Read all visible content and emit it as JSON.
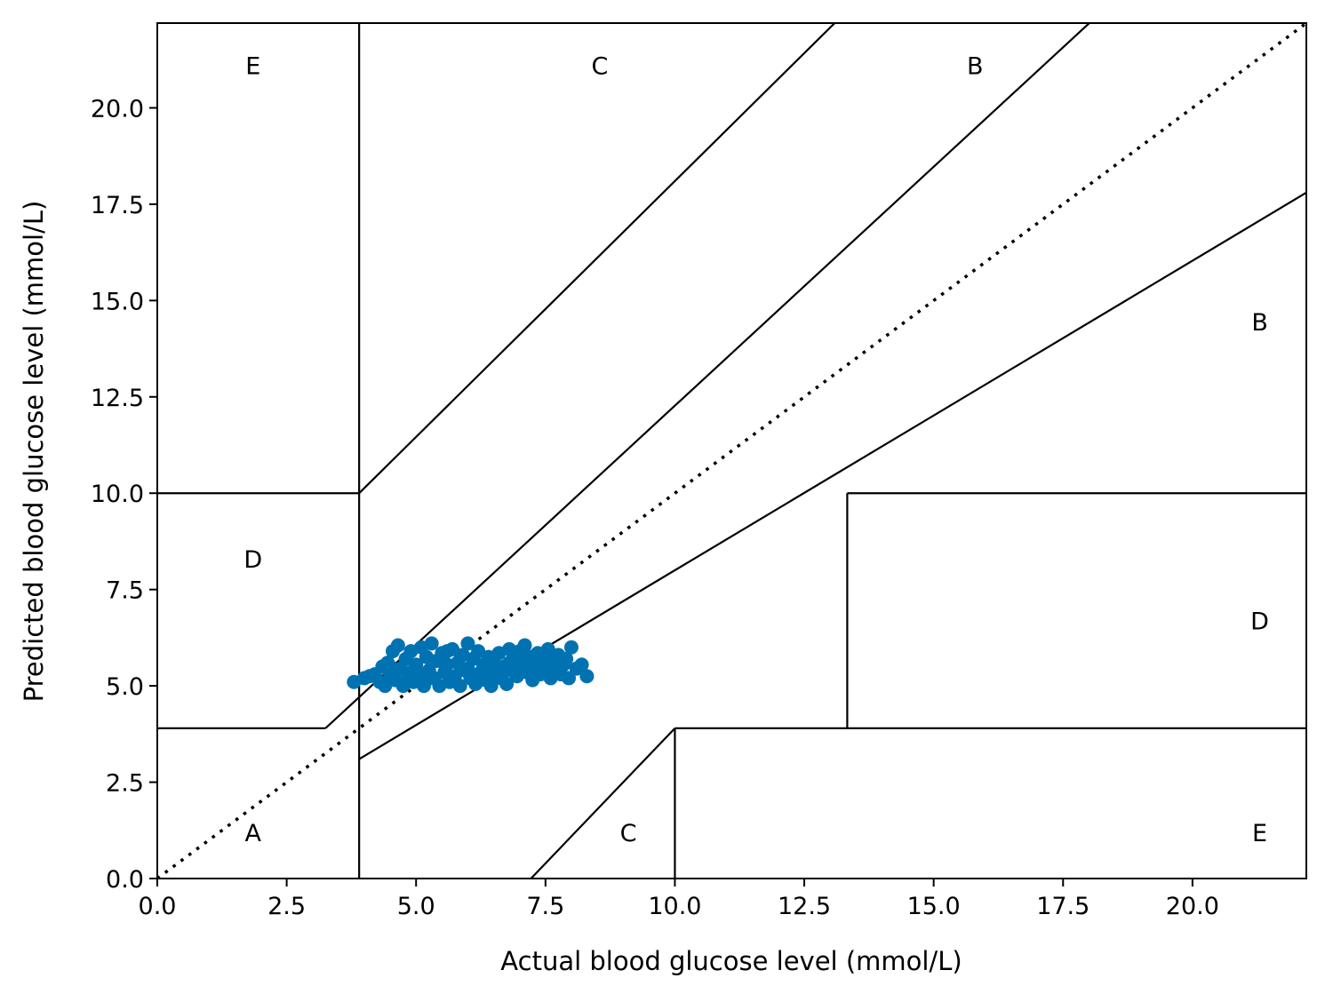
{
  "chart_data": {
    "type": "scatter",
    "title": "",
    "xlabel": "Actual blood glucose level (mmol/L)",
    "ylabel": "Predicted blood glucose level (mmol/L)",
    "xlim": [
      0,
      22.2
    ],
    "ylim": [
      0,
      22.2
    ],
    "x_ticks": [
      {
        "value": 0,
        "label": "0.0"
      },
      {
        "value": 2.5,
        "label": "2.5"
      },
      {
        "value": 5,
        "label": "5.0"
      },
      {
        "value": 7.5,
        "label": "7.5"
      },
      {
        "value": 10,
        "label": "10.0"
      },
      {
        "value": 12.5,
        "label": "12.5"
      },
      {
        "value": 15,
        "label": "15.0"
      },
      {
        "value": 17.5,
        "label": "17.5"
      },
      {
        "value": 20,
        "label": "20.0"
      }
    ],
    "y_ticks": [
      {
        "value": 0,
        "label": "0.0"
      },
      {
        "value": 2.5,
        "label": "2.5"
      },
      {
        "value": 5,
        "label": "5.0"
      },
      {
        "value": 7.5,
        "label": "7.5"
      },
      {
        "value": 10,
        "label": "10.0"
      },
      {
        "value": 12.5,
        "label": "12.5"
      },
      {
        "value": 15,
        "label": "15.0"
      },
      {
        "value": 17.5,
        "label": "17.5"
      },
      {
        "value": 20,
        "label": "20.0"
      }
    ],
    "grid": false,
    "marker_color": "#0072b2",
    "zone_lines": [
      {
        "points": [
          [
            3.9,
            0
          ],
          [
            3.9,
            22.2
          ]
        ]
      },
      {
        "points": [
          [
            0,
            10
          ],
          [
            3.9,
            10
          ]
        ]
      },
      {
        "points": [
          [
            0,
            3.9
          ],
          [
            3.25,
            3.9
          ]
        ]
      },
      {
        "points": [
          [
            3.25,
            3.9
          ],
          [
            22.2,
            27.4
          ]
        ]
      },
      {
        "points": [
          [
            3.9,
            10
          ],
          [
            22.2,
            34.3
          ]
        ]
      },
      {
        "points": [
          [
            3.9,
            3.1
          ],
          [
            22.2,
            17.8
          ]
        ]
      },
      {
        "points": [
          [
            7.22,
            0
          ],
          [
            10,
            3.9
          ]
        ]
      },
      {
        "points": [
          [
            10,
            3.9
          ],
          [
            22.2,
            3.9
          ]
        ]
      },
      {
        "points": [
          [
            10,
            0
          ],
          [
            10,
            3.9
          ]
        ]
      },
      {
        "points": [
          [
            13.33,
            10
          ],
          [
            22.2,
            10
          ]
        ]
      },
      {
        "points": [
          [
            13.33,
            3.9
          ],
          [
            13.33,
            10
          ]
        ]
      }
    ],
    "identity_line": {
      "points": [
        [
          0,
          0
        ],
        [
          22.2,
          22.2
        ]
      ],
      "style": "dotted"
    },
    "zone_labels": [
      {
        "text": "E",
        "x": 1.85,
        "y": 21.1
      },
      {
        "text": "C",
        "x": 8.55,
        "y": 21.1
      },
      {
        "text": "B",
        "x": 15.8,
        "y": 21.1
      },
      {
        "text": "D",
        "x": 1.85,
        "y": 8.3
      },
      {
        "text": "B",
        "x": 21.3,
        "y": 14.45
      },
      {
        "text": "D",
        "x": 21.3,
        "y": 6.7
      },
      {
        "text": "A",
        "x": 1.85,
        "y": 1.2
      },
      {
        "text": "C",
        "x": 9.1,
        "y": 1.2
      },
      {
        "text": "E",
        "x": 21.3,
        "y": 1.2
      }
    ],
    "points": [
      [
        3.8,
        5.1
      ],
      [
        4.0,
        5.2
      ],
      [
        4.1,
        5.25
      ],
      [
        4.2,
        5.3
      ],
      [
        4.3,
        5.1
      ],
      [
        4.35,
        5.5
      ],
      [
        4.4,
        5.0
      ],
      [
        4.45,
        5.6
      ],
      [
        4.5,
        5.3
      ],
      [
        4.55,
        5.9
      ],
      [
        4.6,
        5.15
      ],
      [
        4.65,
        6.05
      ],
      [
        4.7,
        5.45
      ],
      [
        4.75,
        5.0
      ],
      [
        4.8,
        5.7
      ],
      [
        4.85,
        5.25
      ],
      [
        4.9,
        5.9
      ],
      [
        4.95,
        5.1
      ],
      [
        5.0,
        5.55
      ],
      [
        5.05,
        5.3
      ],
      [
        5.1,
        6.0
      ],
      [
        5.15,
        5.0
      ],
      [
        5.2,
        5.75
      ],
      [
        5.25,
        5.4
      ],
      [
        5.3,
        6.1
      ],
      [
        5.35,
        5.2
      ],
      [
        5.4,
        5.65
      ],
      [
        5.45,
        5.0
      ],
      [
        5.5,
        5.85
      ],
      [
        5.55,
        5.35
      ],
      [
        5.6,
        5.55
      ],
      [
        5.65,
        5.1
      ],
      [
        5.7,
        5.95
      ],
      [
        5.75,
        5.25
      ],
      [
        5.8,
        5.6
      ],
      [
        5.85,
        5.0
      ],
      [
        5.9,
        5.8
      ],
      [
        5.95,
        5.4
      ],
      [
        6.0,
        6.1
      ],
      [
        6.05,
        5.2
      ],
      [
        6.1,
        5.7
      ],
      [
        6.15,
        5.05
      ],
      [
        6.2,
        5.9
      ],
      [
        6.25,
        5.35
      ],
      [
        6.3,
        5.55
      ],
      [
        6.35,
        5.15
      ],
      [
        6.4,
        5.75
      ],
      [
        6.45,
        5.0
      ],
      [
        6.5,
        5.6
      ],
      [
        6.55,
        5.3
      ],
      [
        6.6,
        5.85
      ],
      [
        6.65,
        5.2
      ],
      [
        6.7,
        5.5
      ],
      [
        6.75,
        5.05
      ],
      [
        6.8,
        5.95
      ],
      [
        6.85,
        5.4
      ],
      [
        6.9,
        5.7
      ],
      [
        6.95,
        5.25
      ],
      [
        7.0,
        5.9
      ],
      [
        7.05,
        5.55
      ],
      [
        7.1,
        6.05
      ],
      [
        7.15,
        5.35
      ],
      [
        7.2,
        5.75
      ],
      [
        7.25,
        5.15
      ],
      [
        7.3,
        5.6
      ],
      [
        7.35,
        5.85
      ],
      [
        7.4,
        5.3
      ],
      [
        7.45,
        5.7
      ],
      [
        7.5,
        5.45
      ],
      [
        7.55,
        5.95
      ],
      [
        7.6,
        5.2
      ],
      [
        7.65,
        5.65
      ],
      [
        7.7,
        5.4
      ],
      [
        7.75,
        5.8
      ],
      [
        7.8,
        5.3
      ],
      [
        7.85,
        5.55
      ],
      [
        7.9,
        5.7
      ],
      [
        7.95,
        5.2
      ],
      [
        8.0,
        6.0
      ],
      [
        8.1,
        5.45
      ],
      [
        8.2,
        5.55
      ],
      [
        8.3,
        5.25
      ],
      [
        4.5,
        5.5
      ],
      [
        4.9,
        5.35
      ],
      [
        5.2,
        5.15
      ],
      [
        5.6,
        5.9
      ],
      [
        6.0,
        5.45
      ],
      [
        6.4,
        5.35
      ],
      [
        6.8,
        5.6
      ],
      [
        7.2,
        5.4
      ]
    ]
  }
}
